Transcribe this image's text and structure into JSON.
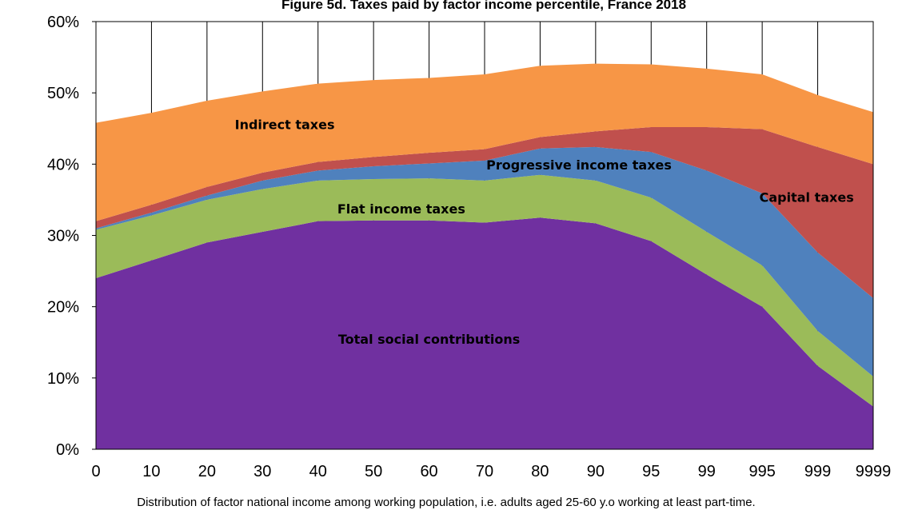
{
  "chart_data": {
    "type": "area",
    "stacked": true,
    "title": "Figure 5d. Taxes paid by factor income percentile, France 2018",
    "subtitle": "Distribution of factor national income among working population, i.e. adults aged 25-60 y.o working at least part-time.",
    "xlabel": "",
    "ylabel": "",
    "categories": [
      "0",
      "10",
      "20",
      "30",
      "40",
      "50",
      "60",
      "70",
      "80",
      "90",
      "95",
      "99",
      "995",
      "999",
      "9999"
    ],
    "ylim": [
      0,
      60
    ],
    "yticks": [
      "0%",
      "10%",
      "20%",
      "30%",
      "40%",
      "50%",
      "60%"
    ],
    "grid": "vertical",
    "series": [
      {
        "name": "Total social contributions",
        "color": "#7030a0",
        "values": [
          24,
          26.5,
          29,
          30.5,
          32,
          32.1,
          32.1,
          31.8,
          32.5,
          31.7,
          29.2,
          24.5,
          20,
          11.7,
          6
        ]
      },
      {
        "name": "Flat income taxes",
        "color": "#9bbb59",
        "values": [
          6.8,
          6.3,
          6,
          6,
          5.7,
          5.8,
          5.9,
          5.9,
          6,
          6,
          6.1,
          6,
          5.8,
          4.9,
          4.2
        ]
      },
      {
        "name": "Progressive income taxes",
        "color": "#4f81bd",
        "values": [
          0.2,
          0.4,
          0.6,
          1.2,
          1.4,
          1.8,
          2.1,
          2.8,
          3.7,
          4.7,
          6.4,
          8.6,
          10.1,
          11,
          11
        ]
      },
      {
        "name": "Capital taxes",
        "color": "#c0504d",
        "values": [
          1,
          1.1,
          1.2,
          1.1,
          1.2,
          1.3,
          1.5,
          1.6,
          1.6,
          2.2,
          3.5,
          6.1,
          9,
          14.8,
          18.8
        ]
      },
      {
        "name": "Indirect taxes",
        "color": "#f79646",
        "values": [
          13.8,
          12.9,
          12.1,
          11.4,
          11,
          10.8,
          10.5,
          10.5,
          10,
          9.5,
          8.8,
          8.2,
          7.7,
          7.3,
          7.3
        ]
      }
    ]
  }
}
